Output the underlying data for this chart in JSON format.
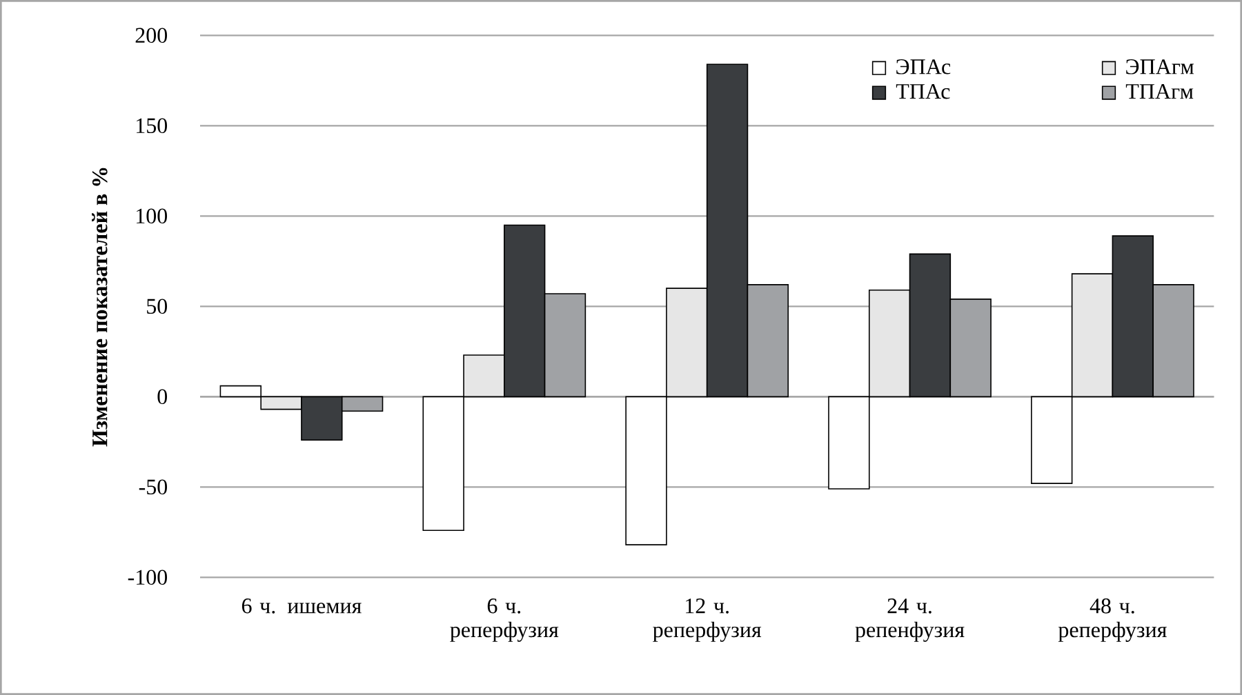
{
  "chart_data": {
    "type": "bar",
    "ylabel": "Изменение показателей в %",
    "categories": [
      "6 ч. ишемия",
      "6 ч. реперфузия",
      "12 ч. реперфузия",
      "24 ч. репенфузия",
      "48 ч. реперфузия"
    ],
    "series": [
      {
        "name": "ЭПАс",
        "color": "#ffffff",
        "values": [
          6,
          -74,
          -82,
          -51,
          -48
        ]
      },
      {
        "name": "ЭПАгм",
        "color": "#e6e6e6",
        "values": [
          -7,
          23,
          60,
          59,
          68
        ]
      },
      {
        "name": "ТПАс",
        "color": "#3a3d40",
        "values": [
          -24,
          95,
          184,
          79,
          89
        ]
      },
      {
        "name": "ТПАгм",
        "color": "#a0a2a5",
        "values": [
          -8,
          57,
          62,
          54,
          62
        ]
      }
    ],
    "ylim": [
      -100,
      200
    ],
    "yticks": [
      -100,
      -50,
      0,
      50,
      100,
      150,
      200
    ],
    "grid": "y",
    "legend": "top right"
  }
}
